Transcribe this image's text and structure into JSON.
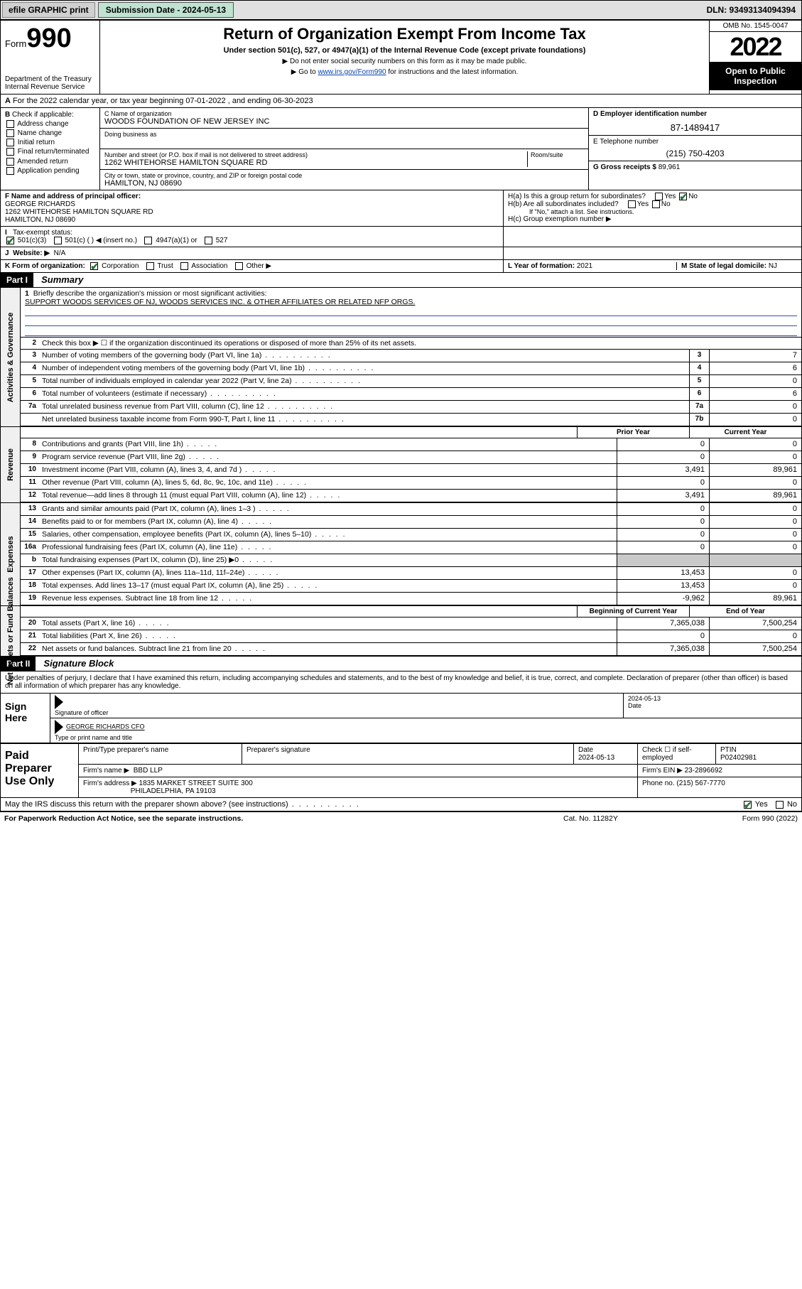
{
  "topbar": {
    "efile": "efile GRAPHIC print",
    "subdate_lbl": "Submission Date - 2024-05-13",
    "dln": "DLN: 93493134094394"
  },
  "header": {
    "form_prefix": "Form",
    "form_num": "990",
    "dept": "Department of the Treasury",
    "irs": "Internal Revenue Service",
    "title": "Return of Organization Exempt From Income Tax",
    "subtitle": "Under section 501(c), 527, or 4947(a)(1) of the Internal Revenue Code (except private foundations)",
    "note1": "▶ Do not enter social security numbers on this form as it may be made public.",
    "note2_pre": "▶ Go to ",
    "note2_link": "www.irs.gov/Form990",
    "note2_post": " for instructions and the latest information.",
    "omb": "OMB No. 1545-0047",
    "year": "2022",
    "otp": "Open to Public Inspection"
  },
  "A": {
    "text": "For the 2022 calendar year, or tax year beginning 07-01-2022    , and ending 06-30-2023"
  },
  "B": {
    "label": "Check if applicable:",
    "items": [
      "Address change",
      "Name change",
      "Initial return",
      "Final return/terminated",
      "Amended return",
      "Application pending"
    ]
  },
  "C": {
    "name_lbl": "C Name of organization",
    "name": "WOODS FOUNDATION OF NEW JERSEY INC",
    "dba_lbl": "Doing business as",
    "addr_lbl": "Number and street (or P.O. box if mail is not delivered to street address)",
    "room_lbl": "Room/suite",
    "addr": "1262 WHITEHORSE HAMILTON SQUARE RD",
    "city_lbl": "City or town, state or province, country, and ZIP or foreign postal code",
    "city": "HAMILTON, NJ  08690"
  },
  "D": {
    "lbl": "D Employer identification number",
    "val": "87-1489417"
  },
  "E": {
    "lbl": "E Telephone number",
    "val": "(215) 750-4203"
  },
  "G": {
    "lbl": "G Gross receipts $",
    "val": "89,961"
  },
  "F": {
    "lbl": "F  Name and address of principal officer:",
    "name": "GEORGE RICHARDS",
    "addr1": "1262 WHITEHORSE HAMILTON SQUARE RD",
    "addr2": "HAMILTON, NJ  08690"
  },
  "H": {
    "a": "H(a)  Is this a group return for subordinates?",
    "b": "H(b)  Are all subordinates included?",
    "b_note": "If \"No,\" attach a list. See instructions.",
    "c": "H(c)  Group exemption number ▶"
  },
  "I": {
    "lbl": "Tax-exempt status:",
    "opts": [
      "501(c)(3)",
      "501(c) (  ) ◀ (insert no.)",
      "4947(a)(1) or",
      "527"
    ]
  },
  "J": {
    "lbl": "Website: ▶",
    "val": "N/A"
  },
  "K": {
    "lbl": "K Form of organization:",
    "opts": [
      "Corporation",
      "Trust",
      "Association",
      "Other ▶"
    ]
  },
  "L": {
    "lbl": "L Year of formation:",
    "val": "2021"
  },
  "M": {
    "lbl": "M State of legal domicile:",
    "val": "NJ"
  },
  "partI": {
    "num": "Part I",
    "title": "Summary"
  },
  "summary": {
    "gov_label": "Activities & Governance",
    "rev_label": "Revenue",
    "exp_label": "Expenses",
    "na_label": "Net Assets or Fund Balances",
    "q1_lbl": "Briefly describe the organization's mission or most significant activities:",
    "q1_val": "SUPPORT WOODS SERVICES OF NJ, WOODS SERVICES INC. & OTHER AFFILIATES OR RELATED NFP ORGS.",
    "q2": "Check this box ▶ ☐  if the organization discontinued its operations or disposed of more than 25% of its net assets.",
    "lines_gov": [
      {
        "n": "3",
        "t": "Number of voting members of the governing body (Part VI, line 1a)",
        "b": "3",
        "v": "7"
      },
      {
        "n": "4",
        "t": "Number of independent voting members of the governing body (Part VI, line 1b)",
        "b": "4",
        "v": "6"
      },
      {
        "n": "5",
        "t": "Total number of individuals employed in calendar year 2022 (Part V, line 2a)",
        "b": "5",
        "v": "0"
      },
      {
        "n": "6",
        "t": "Total number of volunteers (estimate if necessary)",
        "b": "6",
        "v": "6"
      },
      {
        "n": "7a",
        "t": "Total unrelated business revenue from Part VIII, column (C), line 12",
        "b": "7a",
        "v": "0"
      },
      {
        "n": "",
        "t": "Net unrelated business taxable income from Form 990-T, Part I, line 11",
        "b": "7b",
        "v": "0"
      }
    ],
    "col_prior": "Prior Year",
    "col_curr": "Current Year",
    "lines_rev": [
      {
        "n": "8",
        "t": "Contributions and grants (Part VIII, line 1h)",
        "p": "0",
        "c": "0"
      },
      {
        "n": "9",
        "t": "Program service revenue (Part VIII, line 2g)",
        "p": "0",
        "c": "0"
      },
      {
        "n": "10",
        "t": "Investment income (Part VIII, column (A), lines 3, 4, and 7d )",
        "p": "3,491",
        "c": "89,961"
      },
      {
        "n": "11",
        "t": "Other revenue (Part VIII, column (A), lines 5, 6d, 8c, 9c, 10c, and 11e)",
        "p": "0",
        "c": "0"
      },
      {
        "n": "12",
        "t": "Total revenue—add lines 8 through 11 (must equal Part VIII, column (A), line 12)",
        "p": "3,491",
        "c": "89,961"
      }
    ],
    "lines_exp": [
      {
        "n": "13",
        "t": "Grants and similar amounts paid (Part IX, column (A), lines 1–3 )",
        "p": "0",
        "c": "0"
      },
      {
        "n": "14",
        "t": "Benefits paid to or for members (Part IX, column (A), line 4)",
        "p": "0",
        "c": "0"
      },
      {
        "n": "15",
        "t": "Salaries, other compensation, employee benefits (Part IX, column (A), lines 5–10)",
        "p": "0",
        "c": "0"
      },
      {
        "n": "16a",
        "t": "Professional fundraising fees (Part IX, column (A), line 11e)",
        "p": "0",
        "c": "0"
      },
      {
        "n": "b",
        "t": "Total fundraising expenses (Part IX, column (D), line 25) ▶0",
        "p": "",
        "c": "",
        "grey": true
      },
      {
        "n": "17",
        "t": "Other expenses (Part IX, column (A), lines 11a–11d, 11f–24e)",
        "p": "13,453",
        "c": "0"
      },
      {
        "n": "18",
        "t": "Total expenses. Add lines 13–17 (must equal Part IX, column (A), line 25)",
        "p": "13,453",
        "c": "0"
      },
      {
        "n": "19",
        "t": "Revenue less expenses. Subtract line 18 from line 12",
        "p": "-9,962",
        "c": "89,961"
      }
    ],
    "col_beg": "Beginning of Current Year",
    "col_end": "End of Year",
    "lines_na": [
      {
        "n": "20",
        "t": "Total assets (Part X, line 16)",
        "p": "7,365,038",
        "c": "7,500,254"
      },
      {
        "n": "21",
        "t": "Total liabilities (Part X, line 26)",
        "p": "0",
        "c": "0"
      },
      {
        "n": "22",
        "t": "Net assets or fund balances. Subtract line 21 from line 20",
        "p": "7,365,038",
        "c": "7,500,254"
      }
    ]
  },
  "partII": {
    "num": "Part II",
    "title": "Signature Block"
  },
  "sig": {
    "decl": "Under penalties of perjury, I declare that I have examined this return, including accompanying schedules and statements, and to the best of my knowledge and belief, it is true, correct, and complete. Declaration of preparer (other than officer) is based on all information of which preparer has any knowledge.",
    "sign_here": "Sign Here",
    "sig_officer": "Signature of officer",
    "date": "2024-05-13",
    "date_lbl": "Date",
    "name": "GEORGE RICHARDS CFO",
    "name_lbl": "Type or print name and title"
  },
  "paid": {
    "lbl": "Paid Preparer Use Only",
    "h1": "Print/Type preparer's name",
    "h2": "Preparer's signature",
    "h3": "Date",
    "h3v": "2024-05-13",
    "h4": "Check ☐ if self-employed",
    "h5": "PTIN",
    "h5v": "P02402981",
    "firm_name_lbl": "Firm's name    ▶",
    "firm_name": "BBD LLP",
    "firm_ein_lbl": "Firm's EIN ▶",
    "firm_ein": "23-2896692",
    "firm_addr_lbl": "Firm's address ▶",
    "firm_addr1": "1835 MARKET STREET SUITE 300",
    "firm_addr2": "PHILADELPHIA, PA  19103",
    "phone_lbl": "Phone no.",
    "phone": "(215) 567-7770"
  },
  "discuss": {
    "q": "May the IRS discuss this return with the preparer shown above? (see instructions)",
    "yes": "Yes",
    "no": "No"
  },
  "footer": {
    "l": "For Paperwork Reduction Act Notice, see the separate instructions.",
    "m": "Cat. No. 11282Y",
    "r": "Form 990 (2022)"
  }
}
